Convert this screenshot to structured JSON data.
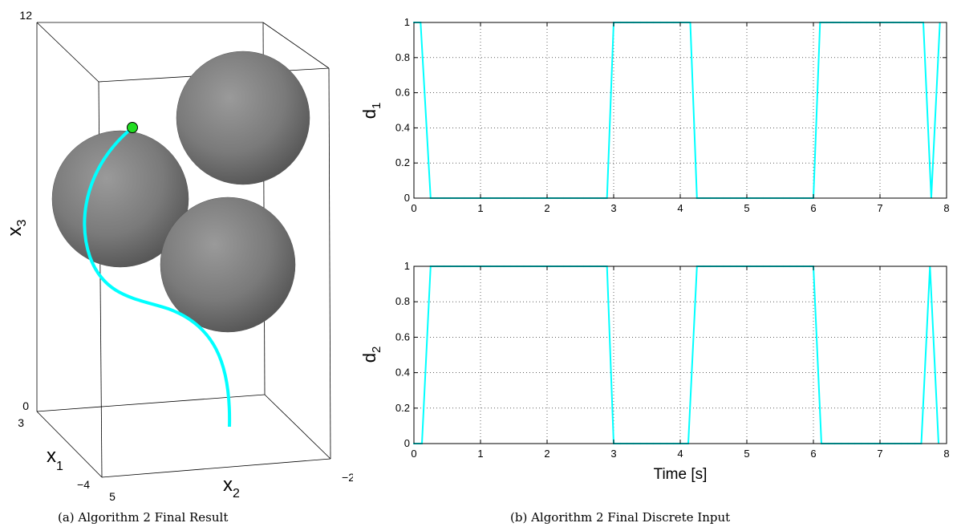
{
  "captions": {
    "a": "(a) Algorithm 2 Final Result",
    "b": "(b) Algorithm 2 Final Discrete Input"
  },
  "colors": {
    "trace": "#00ffff",
    "sphere": "#808080",
    "start_marker": "#22dd22",
    "box": "#000000"
  },
  "chart_data": [
    {
      "type": "line3d",
      "axes": {
        "x3": {
          "label_base": "x",
          "label_sub": "3",
          "ticks": [
            "12",
            "0"
          ],
          "range": [
            0,
            12
          ]
        },
        "x1": {
          "label_base": "x",
          "label_sub": "1",
          "ticks": [
            "3",
            "−4"
          ],
          "range": [
            -4,
            3
          ]
        },
        "x2": {
          "label_base": "x",
          "label_sub": "2",
          "ticks": [
            "5",
            "−2"
          ],
          "range": [
            5,
            -2
          ]
        }
      },
      "obstacles": [
        "sphere",
        "sphere",
        "sphere"
      ],
      "trajectory": "cyan curve with green start marker"
    },
    {
      "type": "line",
      "ylabel_base": "d",
      "ylabel_sub": "1",
      "xlim": [
        0,
        8
      ],
      "ylim": [
        0,
        1
      ],
      "xticks": [
        "0",
        "1",
        "2",
        "3",
        "4",
        "5",
        "6",
        "7",
        "8"
      ],
      "yticks": [
        "0",
        "0.2",
        "0.4",
        "0.6",
        "0.8",
        "1"
      ],
      "grid": true,
      "x": [
        0,
        0.1,
        0.25,
        2.9,
        3.0,
        4.15,
        4.25,
        6.0,
        6.1,
        7.65,
        7.77,
        7.9
      ],
      "y": [
        1,
        1,
        0,
        0,
        1,
        1,
        0,
        0,
        1,
        1,
        0,
        1
      ]
    },
    {
      "type": "line",
      "ylabel_base": "d",
      "ylabel_sub": "2",
      "xlabel": "Time [s]",
      "xlim": [
        0,
        8
      ],
      "ylim": [
        0,
        1
      ],
      "xticks": [
        "0",
        "1",
        "2",
        "3",
        "4",
        "5",
        "6",
        "7",
        "8"
      ],
      "yticks": [
        "0",
        "0.2",
        "0.4",
        "0.6",
        "0.8",
        "1"
      ],
      "grid": true,
      "x": [
        0,
        0.12,
        0.25,
        2.9,
        3.0,
        4.12,
        4.25,
        6.0,
        6.12,
        7.62,
        7.75,
        7.88
      ],
      "y": [
        0,
        0,
        1,
        1,
        0,
        0,
        1,
        1,
        0,
        0,
        1,
        0
      ]
    }
  ]
}
